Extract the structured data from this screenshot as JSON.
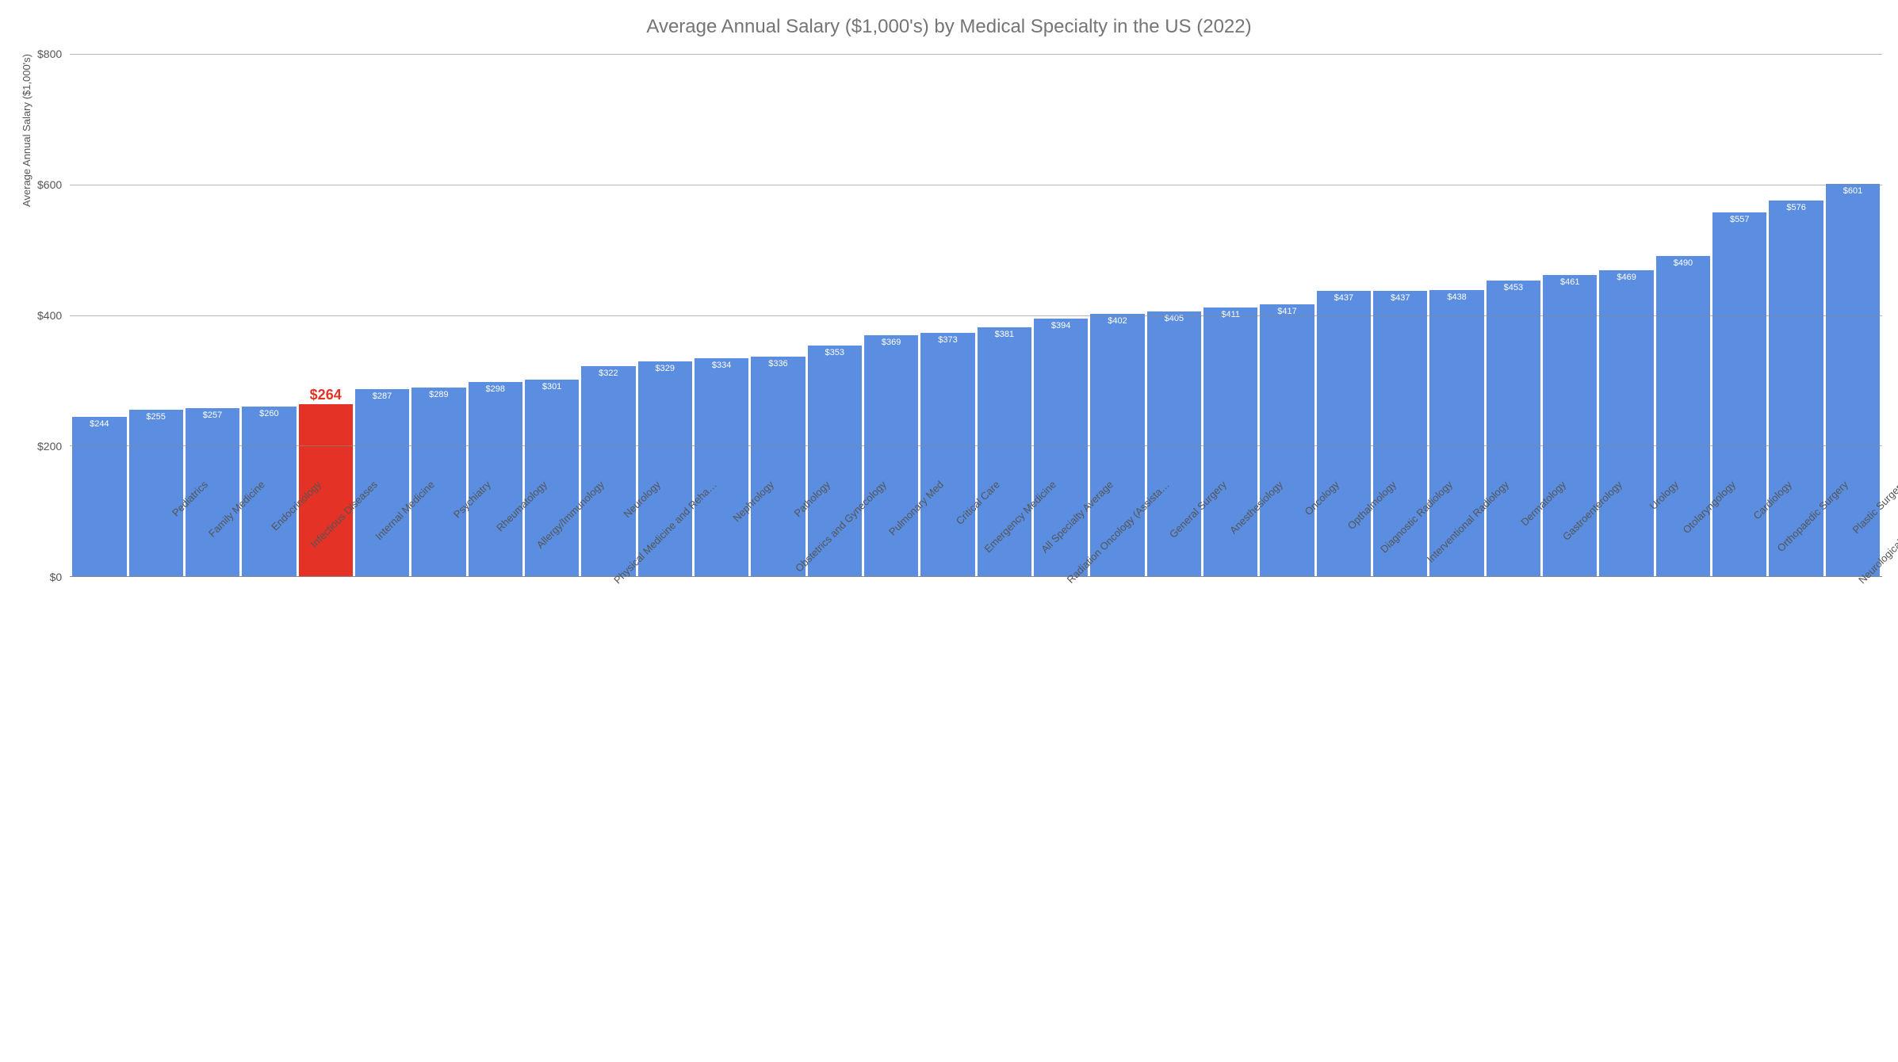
{
  "chart": {
    "type": "bar",
    "title": "Average Annual Salary ($1,000's) by Medical Specialty in the US (2022)",
    "ylabel": "Average Annual Salary ($1,000's)",
    "title_fontsize": 24,
    "title_color": "#757575",
    "ylabel_fontsize": 13,
    "background_color": "#ffffff",
    "grid_color": "#888888",
    "default_bar_color": "#5b8ee0",
    "highlight_bar_color": "#e53226",
    "bar_label_color": "#ffffff",
    "highlight_label_color": "#e53226",
    "tick_color": "#555555",
    "ylim": [
      0,
      800
    ],
    "ytick_step": 200,
    "yticks": [
      {
        "value": 0,
        "label": "$0"
      },
      {
        "value": 200,
        "label": "$200"
      },
      {
        "value": 400,
        "label": "$400"
      },
      {
        "value": 600,
        "label": "$600"
      },
      {
        "value": 800,
        "label": "$800"
      }
    ],
    "categories": [
      "Pediatrics",
      "Family Medicine",
      "Endocrinology",
      "Infectious Diseases",
      "Internal Medicine",
      "Psychiatry",
      "Rheumatology",
      "Allergy/Immunology",
      "Neurology",
      "Physical Medicine and Reha…",
      "Nephrology",
      "Pathology",
      "Obstetrics and Gynecology",
      "Pulmonary Med",
      "Critical Care",
      "Emergency Medicine",
      "All Specialty Average",
      "Radiation Oncology (Assista…",
      "General Surgery",
      "Anesthesiology",
      "Oncology",
      "Opthalmology",
      "Diagnostic Radiology",
      "Interventional Radiology",
      "Dermatology",
      "Gastroenterology",
      "Urology",
      "Otolaryngology",
      "Cardiology",
      "Orthopaedic Surgery",
      "Plastic Surgery",
      "Neurological Surgery (Assist…"
    ],
    "values": [
      244,
      255,
      257,
      260,
      264,
      287,
      289,
      298,
      301,
      322,
      329,
      334,
      336,
      353,
      369,
      373,
      381,
      394,
      402,
      405,
      411,
      417,
      437,
      437,
      438,
      453,
      461,
      469,
      490,
      557,
      576,
      601
    ],
    "value_labels": [
      "$244",
      "$255",
      "$257",
      "$260",
      "$264",
      "$287",
      "$289",
      "$298",
      "$301",
      "$322",
      "$329",
      "$334",
      "$336",
      "$353",
      "$369",
      "$373",
      "$381",
      "$394",
      "$402",
      "$405",
      "$411",
      "$417",
      "$437",
      "$437",
      "$438",
      "$453",
      "$461",
      "$469",
      "$490",
      "$557",
      "$576",
      "$601"
    ],
    "highlight_index": 4
  }
}
